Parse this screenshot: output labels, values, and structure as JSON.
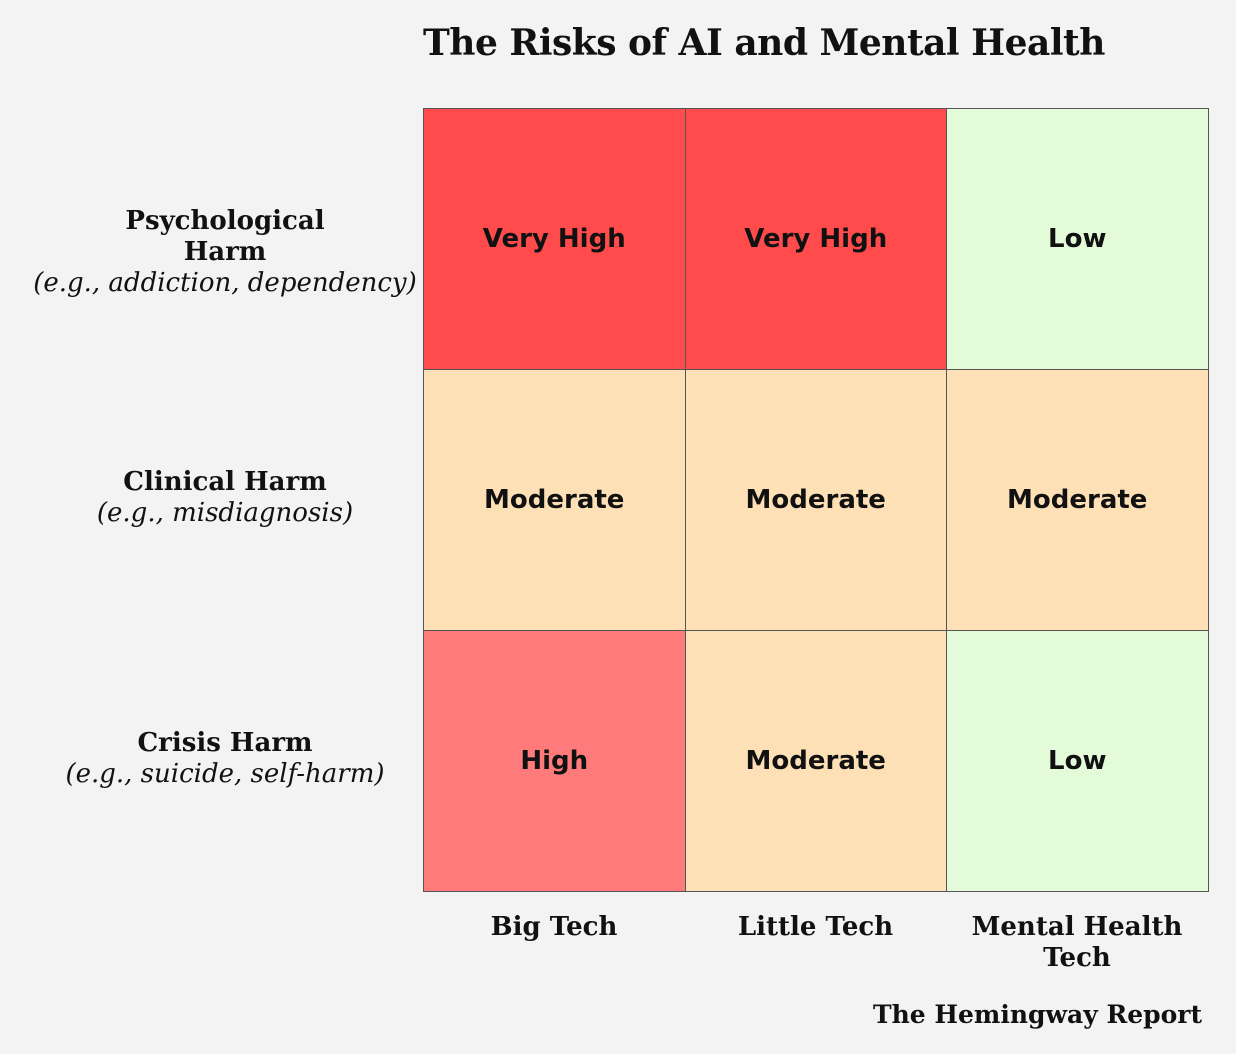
{
  "chart_data": {
    "type": "heatmap",
    "title": "The Risks of AI and Mental Health",
    "rows": [
      {
        "label": "Psychological Harm",
        "sublabel": "(e.g., addiction, dependency)"
      },
      {
        "label": "Clinical Harm",
        "sublabel": "(e.g., misdiagnosis)"
      },
      {
        "label": "Crisis Harm",
        "sublabel": "(e.g., suicide, self-harm)"
      }
    ],
    "columns": [
      "Big Tech",
      "Little Tech",
      "Mental Health Tech"
    ],
    "values": [
      [
        "Very High",
        "Very High",
        "Low"
      ],
      [
        "Moderate",
        "Moderate",
        "Moderate"
      ],
      [
        "High",
        "Moderate",
        "Low"
      ]
    ],
    "level_colors": {
      "Very High": "#ff4b4b",
      "High": "#ff7b7b",
      "Moderate": "#fee0b6",
      "Low": "#e3fbd8"
    }
  },
  "source": "The Hemingway Report"
}
